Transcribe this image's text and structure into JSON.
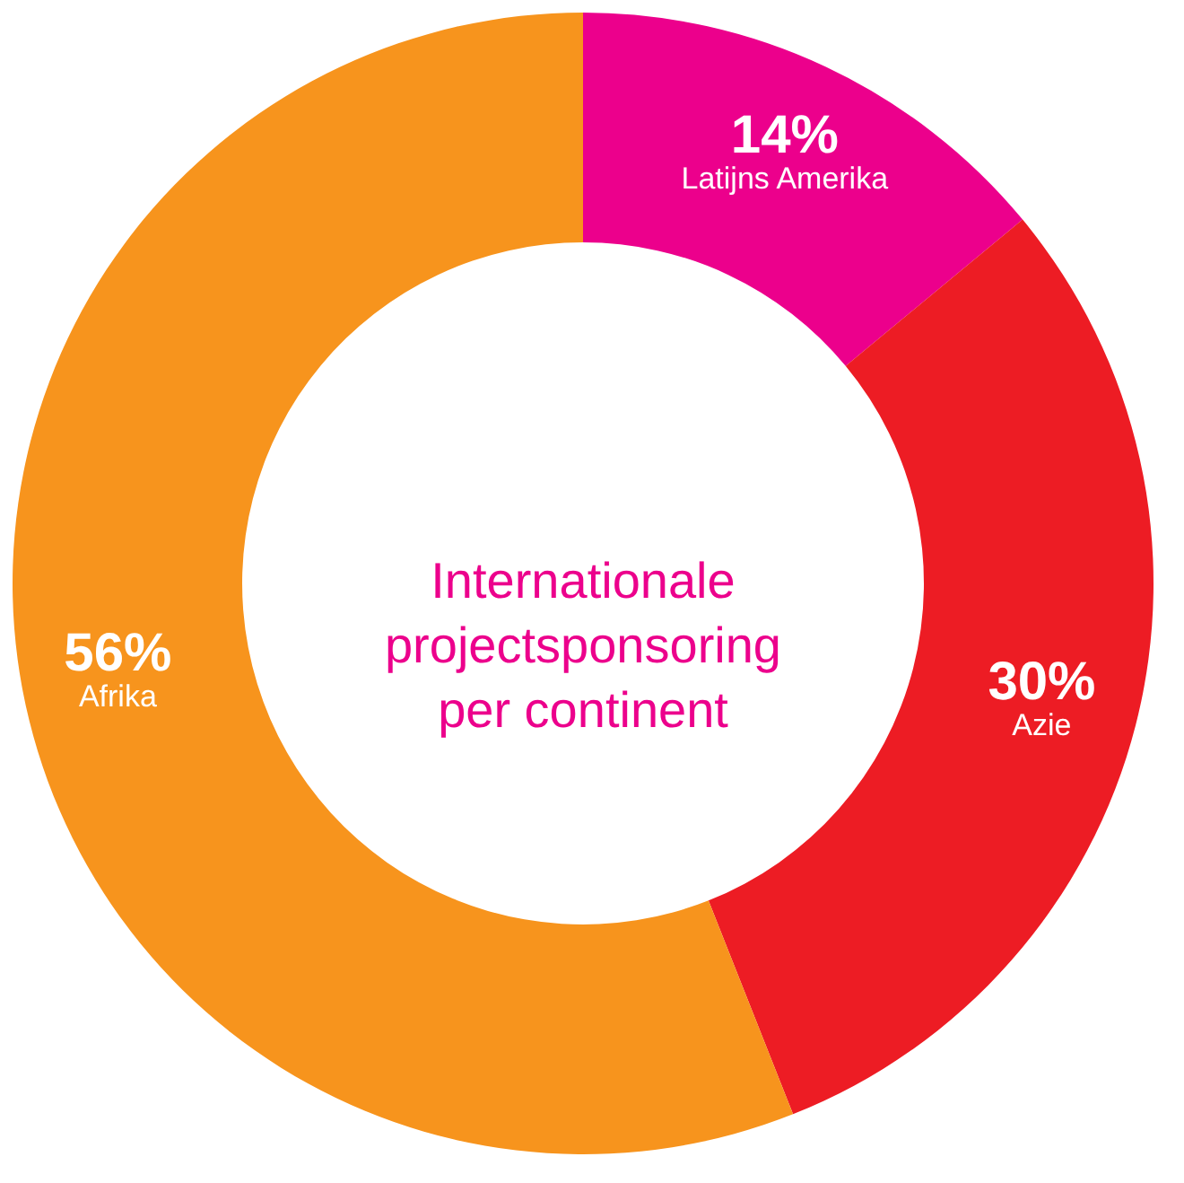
{
  "chart_data": {
    "type": "donut",
    "title": "Internationale projectsponsoring per continent",
    "categories": [
      "Latijns Amerika",
      "Azie",
      "Afrika"
    ],
    "values": [
      14,
      30,
      56
    ],
    "value_labels": [
      "14%",
      "30%",
      "56%"
    ],
    "colors": [
      "#ec008c",
      "#ed1c24",
      "#f7941d"
    ]
  }
}
